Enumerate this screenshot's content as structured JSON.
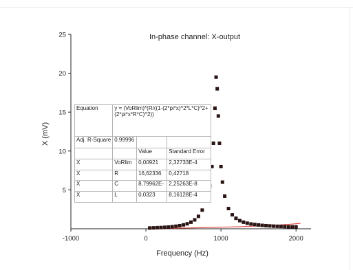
{
  "chart_data": {
    "type": "scatter",
    "title": "In-phase channel: X-output",
    "xlabel": "Frequency (Hz)",
    "ylabel": "X (mV)",
    "xlim": [
      -1000,
      2200
    ],
    "ylim": [
      0,
      25
    ],
    "x_ticks": [
      "-1000",
      "0",
      "1000",
      "2000"
    ],
    "y_ticks": [
      "5",
      "10",
      "15",
      "20",
      "25"
    ],
    "grid": false,
    "series": [
      {
        "marker": "square",
        "color": "#2a1414",
        "points": [
          [
            50,
            0.1
          ],
          [
            100,
            0.12
          ],
          [
            150,
            0.14
          ],
          [
            200,
            0.16
          ],
          [
            250,
            0.19
          ],
          [
            300,
            0.22
          ],
          [
            350,
            0.27
          ],
          [
            400,
            0.33
          ],
          [
            450,
            0.4
          ],
          [
            500,
            0.5
          ],
          [
            550,
            0.64
          ],
          [
            600,
            0.85
          ],
          [
            650,
            1.15
          ],
          [
            700,
            1.6
          ],
          [
            750,
            2.4
          ],
          [
            800,
            3.6
          ],
          [
            850,
            5.5
          ],
          [
            880,
            8.0
          ],
          [
            900,
            11.0
          ],
          [
            920,
            15.5
          ],
          [
            935,
            19.5
          ],
          [
            950,
            18.0
          ],
          [
            965,
            14.5
          ],
          [
            980,
            11.0
          ],
          [
            1000,
            8.0
          ],
          [
            1020,
            6.0
          ],
          [
            1050,
            4.2
          ],
          [
            1100,
            2.6
          ],
          [
            1150,
            1.8
          ],
          [
            1200,
            1.35
          ],
          [
            1250,
            1.05
          ],
          [
            1300,
            0.85
          ],
          [
            1350,
            0.72
          ],
          [
            1400,
            0.62
          ],
          [
            1450,
            0.55
          ],
          [
            1500,
            0.49
          ],
          [
            1550,
            0.44
          ],
          [
            1600,
            0.4
          ],
          [
            1650,
            0.37
          ],
          [
            1700,
            0.34
          ],
          [
            1750,
            0.32
          ],
          [
            1800,
            0.3
          ],
          [
            1850,
            0.28
          ],
          [
            1900,
            0.26
          ],
          [
            1950,
            0.25
          ],
          [
            2000,
            0.24
          ]
        ]
      }
    ],
    "fit_line": {
      "color": "#e0443c",
      "equation": "y = (VoRlim)*(R/((1-(2*pi*x)^2*L*C)^2+(2*pi*x*R*C)^2))",
      "params": {
        "VoRlim": 0.00921,
        "R": 16.62336,
        "C": 8.79962e-08,
        "L": 0.0323
      }
    },
    "fit_table": {
      "equation_label": "Equation",
      "equation": "y = (VoRlim)*(R/((1-(2*pi*x)^2*L*C)^2+(2*pi*x*R*C)^2))",
      "adj_r_label": "Adj. R-Square",
      "adj_r_value": "0.99996",
      "value_header": "Value",
      "error_header": "Standard Error",
      "rows": [
        {
          "var": "X",
          "param": "VoRlim",
          "value": "0,00921",
          "error": "2,32733E-4"
        },
        {
          "var": "X",
          "param": "R",
          "value": "16,62336",
          "error": "0,42718"
        },
        {
          "var": "X",
          "param": "C",
          "value": "8,79962E-",
          "error": "2,25263E-8"
        },
        {
          "var": "X",
          "param": "L",
          "value": "0,0323",
          "error": "8,16128E-4"
        }
      ]
    }
  }
}
